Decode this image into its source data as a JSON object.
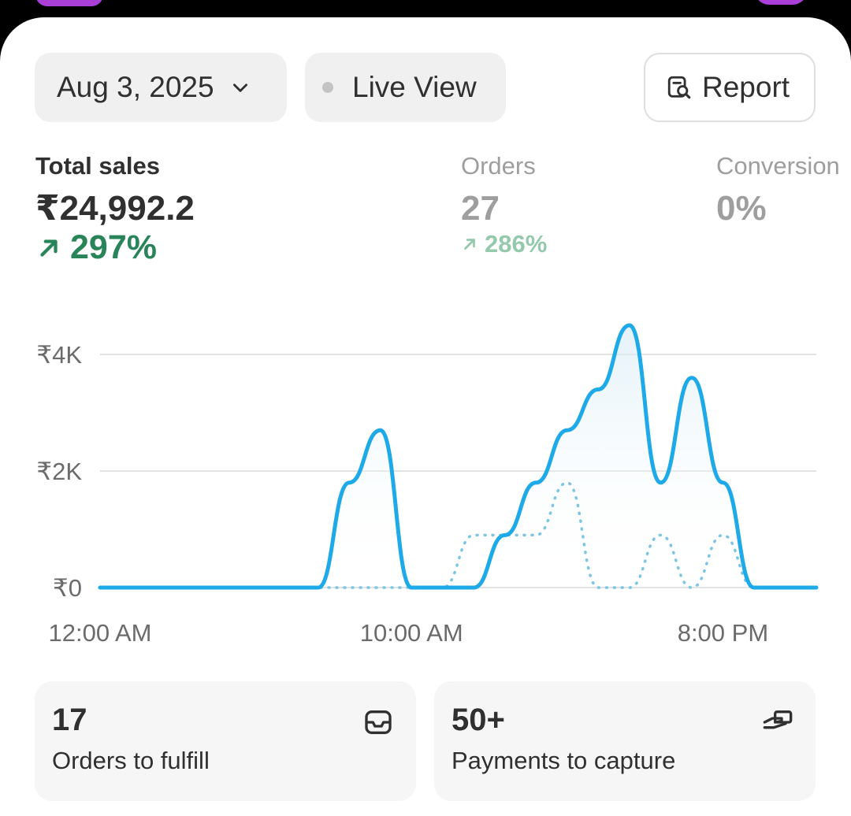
{
  "filters": {
    "date_label": "Aug 3, 2025",
    "live_view_label": "Live View",
    "report_label": "Report"
  },
  "metrics": {
    "total_sales": {
      "label": "Total sales",
      "value": "₹24,992.2",
      "change": "297%"
    },
    "orders": {
      "label": "Orders",
      "value": "27",
      "change": "286%"
    },
    "conversion": {
      "label": "Conversion",
      "value": "0%"
    }
  },
  "icons": {
    "date_dropdown": "chevron-down-icon",
    "live_status": "status-dot-icon",
    "report": "report-search-icon",
    "sales_trend": "arrow-up-right-icon",
    "orders_trend": "arrow-up-right-icon",
    "fulfill": "inbox-icon",
    "payments": "hand-payment-icon"
  },
  "colors": {
    "accent_line": "#1ea9e8",
    "positive": "#29845a",
    "positive_muted": "#94c9ac",
    "brand": "#a93fd6"
  },
  "chart_data": {
    "type": "line",
    "x_tick_labels": [
      "12:00 AM",
      "10:00 AM",
      "8:00 PM"
    ],
    "y_tick_labels": [
      "₹0",
      "₹2K",
      "₹4K"
    ],
    "ylim": [
      0,
      4500
    ],
    "grid": true,
    "x": [
      "12:00 AM",
      "1:00 AM",
      "2:00 AM",
      "3:00 AM",
      "4:00 AM",
      "5:00 AM",
      "6:00 AM",
      "7:00 AM",
      "8:00 AM",
      "9:00 AM",
      "10:00 AM",
      "11:00 AM",
      "12:00 PM",
      "1:00 PM",
      "2:00 PM",
      "3:00 PM",
      "4:00 PM",
      "5:00 PM",
      "6:00 PM",
      "7:00 PM",
      "8:00 PM",
      "9:00 PM",
      "10:00 PM",
      "11:00 PM"
    ],
    "series": [
      {
        "style": "solid",
        "values": [
          0,
          0,
          0,
          0,
          0,
          0,
          0,
          0,
          1800,
          2700,
          0,
          0,
          0,
          900,
          1800,
          2700,
          3400,
          4500,
          1800,
          3600,
          1800,
          0,
          0,
          0
        ]
      },
      {
        "style": "dotted",
        "values": [
          0,
          0,
          0,
          0,
          0,
          0,
          0,
          0,
          0,
          0,
          0,
          0,
          900,
          900,
          900,
          1800,
          0,
          0,
          900,
          0,
          900,
          0,
          0,
          0
        ]
      }
    ]
  },
  "cards": [
    {
      "value": "17",
      "label": "Orders to fulfill"
    },
    {
      "value": "50+",
      "label": "Payments to capture"
    }
  ]
}
